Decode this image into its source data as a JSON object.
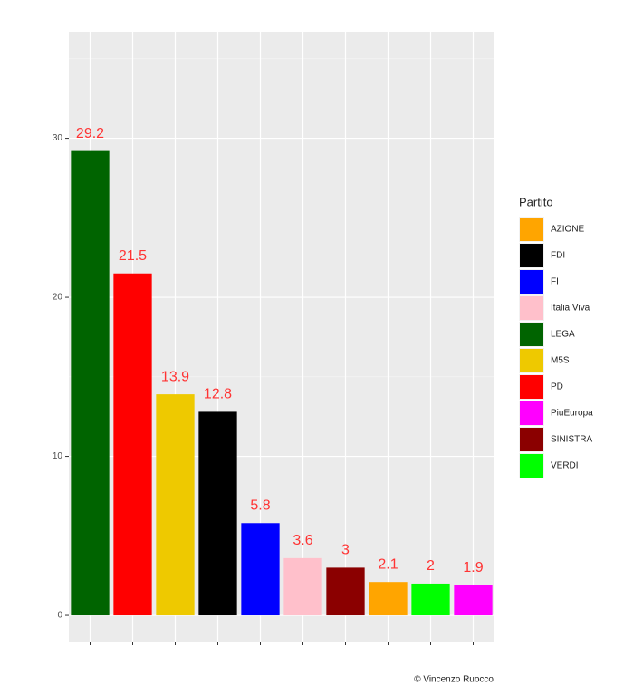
{
  "chart_data": {
    "type": "bar",
    "categories": [
      null,
      null,
      null,
      null,
      null,
      null,
      null,
      null,
      null,
      null
    ],
    "values": [
      29.2,
      21.5,
      13.9,
      12.8,
      5.8,
      3.6,
      3,
      2.1,
      2,
      1.9
    ],
    "colors": [
      "#006400",
      "#FF0000",
      "#EEC900",
      "#000000",
      "#0000FF",
      "#FFC0CB",
      "#8B0000",
      "#FFA500",
      "#00FF00",
      "#FF00FF"
    ],
    "label_color": "#FF3333",
    "ylim": [
      -1.65,
      36.7
    ],
    "yticks": [
      0,
      10,
      20,
      30
    ],
    "minor_yticks": [
      5,
      15,
      25,
      35
    ],
    "grid": true,
    "legend": {
      "title": "Partito",
      "position": "right",
      "entries": [
        {
          "name": "AZIONE",
          "color": "#FFA500"
        },
        {
          "name": "FDI",
          "color": "#000000"
        },
        {
          "name": "FI",
          "color": "#0000FF"
        },
        {
          "name": "Italia Viva",
          "color": "#FFC0CB"
        },
        {
          "name": "LEGA",
          "color": "#006400"
        },
        {
          "name": "M5S",
          "color": "#EEC900"
        },
        {
          "name": "PD",
          "color": "#FF0000"
        },
        {
          "name": "PiuEuropa",
          "color": "#FF00FF"
        },
        {
          "name": "SINISTRA",
          "color": "#8B0000"
        },
        {
          "name": "VERDI",
          "color": "#00FF00"
        }
      ]
    },
    "caption": "© Vincenzo Ruocco"
  }
}
